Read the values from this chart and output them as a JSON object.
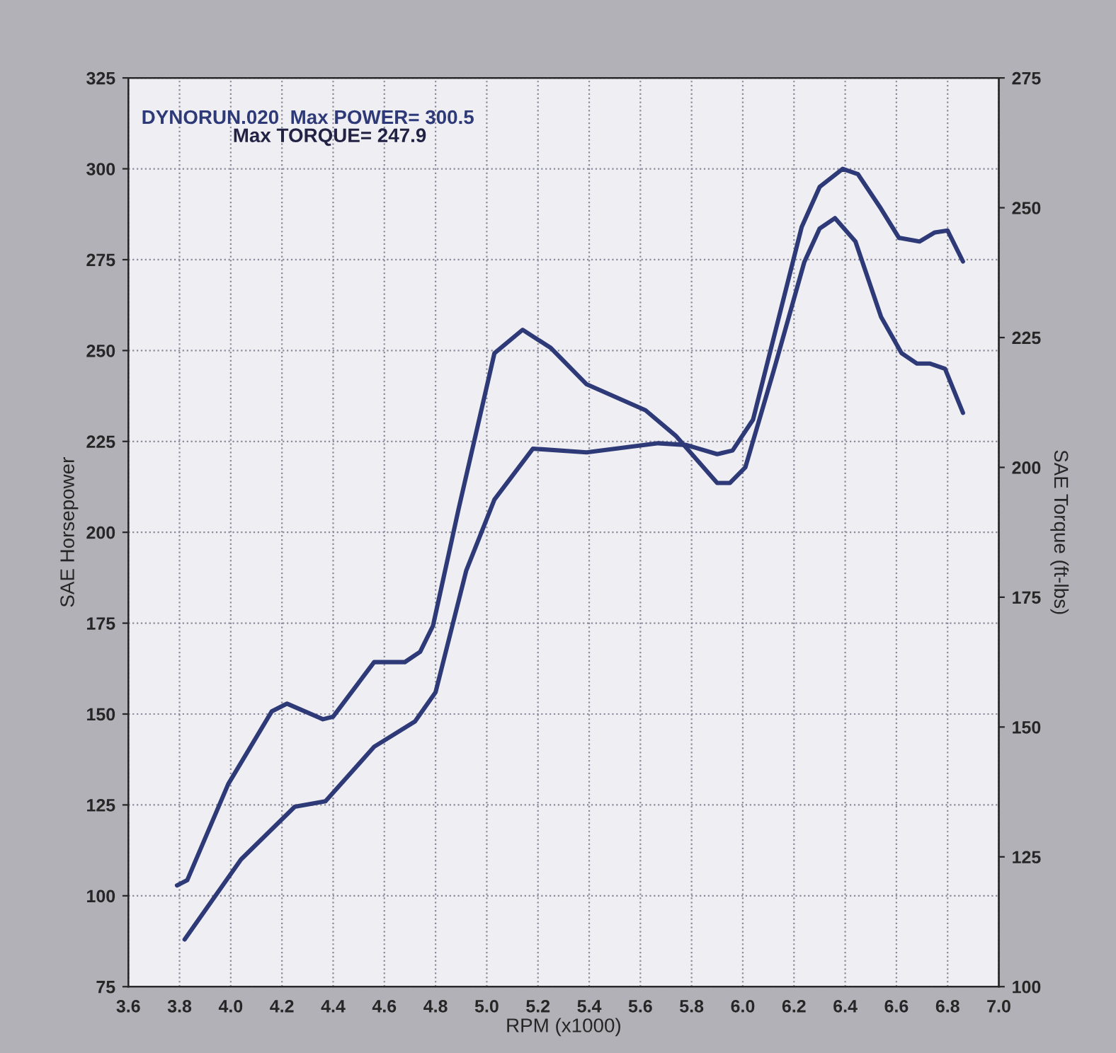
{
  "chart_data": {
    "type": "line",
    "xlabel": "RPM (x1000)",
    "ylabel": "SAE Horsepower",
    "y2label": "SAE Torque (ft-lbs)",
    "annotations": [
      "DYNORUN.020  Max POWER= 300.5",
      "Max TORQUE= 247.9"
    ],
    "xlim": [
      3.6,
      7.0
    ],
    "xticks": [
      3.6,
      3.8,
      {
        "value": 4,
        "label": "4.0"
      },
      4.2,
      4.4,
      4.6,
      4.8,
      {
        "value": 5,
        "label": "5.0"
      },
      5.2,
      5.4,
      5.6,
      5.8,
      {
        "value": 6,
        "label": "6.0"
      },
      6.2,
      6.4,
      6.6,
      6.8,
      {
        "value": 7,
        "label": "7.0"
      }
    ],
    "ylim": [
      75,
      325
    ],
    "yticks": [
      75,
      100,
      125,
      150,
      175,
      200,
      225,
      250,
      275,
      300,
      325
    ],
    "y2lim": [
      100,
      275
    ],
    "y2ticks": [
      100,
      125,
      150,
      175,
      200,
      225,
      250,
      275
    ],
    "grid": true,
    "legend": false,
    "line_style": "solid",
    "marker": "none",
    "series": [
      {
        "color": "#2e3a78",
        "x": [
          3.82,
          4.04,
          4.25,
          4.37,
          4.56,
          4.72,
          4.8,
          4.92,
          5.03,
          5.18,
          5.39,
          5.67,
          5.78,
          5.9,
          5.96,
          6.04,
          6.23,
          6.3,
          6.39,
          6.45,
          6.54,
          6.61,
          6.69,
          6.75,
          6.8,
          6.86
        ],
        "values": [
          88,
          110,
          124.5,
          126,
          141,
          148,
          156,
          189.5,
          209,
          223,
          222,
          224.5,
          224,
          221.5,
          222.5,
          231,
          284,
          295,
          300,
          298.5,
          289,
          281,
          280,
          282.5,
          283,
          274.5
        ]
      },
      {
        "color": "#2e3a78",
        "axis": "y2",
        "x": [
          3.79,
          3.83,
          3.99,
          4.16,
          4.22,
          4.36,
          4.4,
          4.56,
          4.68,
          4.74,
          4.79,
          4.89,
          5.03,
          5.14,
          5.25,
          5.39,
          5.62,
          5.74,
          5.9,
          5.95,
          6.01,
          6.12,
          6.24,
          6.3,
          6.36,
          6.44,
          6.54,
          6.62,
          6.68,
          6.73,
          6.79,
          6.86
        ],
        "values": [
          119.5,
          120.5,
          139,
          153,
          154.5,
          151.5,
          152,
          162.5,
          162.5,
          164.5,
          169.5,
          192,
          222,
          226.5,
          223,
          216,
          211,
          206,
          197,
          197,
          200,
          218.5,
          239.5,
          246,
          248,
          243.5,
          229,
          222,
          220,
          220,
          219,
          210.5
        ]
      }
    ]
  }
}
